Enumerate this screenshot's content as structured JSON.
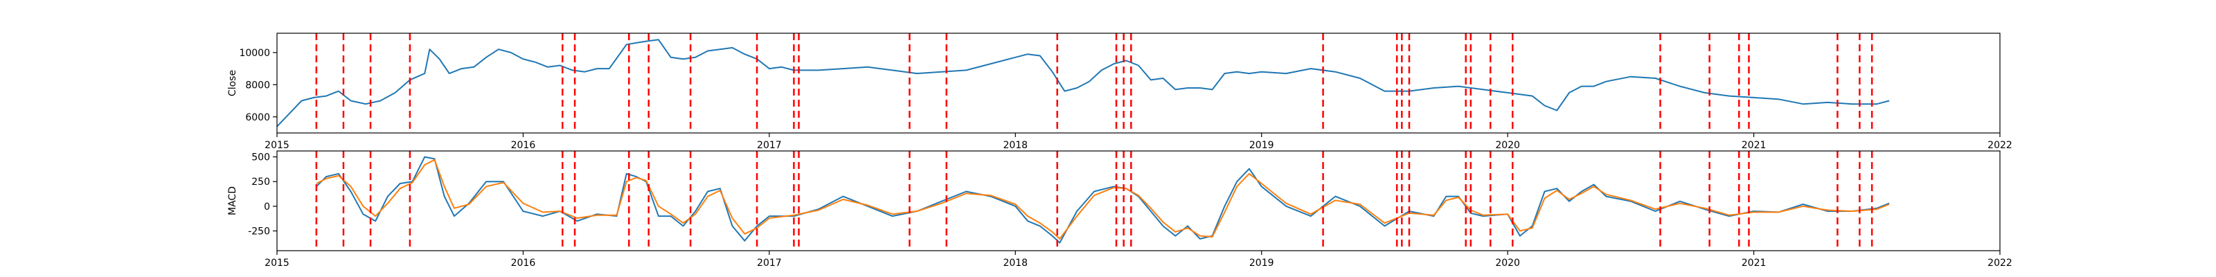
{
  "chart_data": [
    {
      "type": "line",
      "title": "",
      "xlabel": "",
      "ylabel": "Close",
      "xlim": [
        2015,
        2022
      ],
      "ylim": [
        5000,
        11200
      ],
      "x_ticks": [
        2015,
        2016,
        2017,
        2018,
        2019,
        2020,
        2021,
        2022
      ],
      "y_ticks": [
        6000,
        8000,
        10000
      ],
      "grid": false,
      "series": [
        {
          "color": "#1f77b4",
          "x": [
            2015.0,
            2015.05,
            2015.1,
            2015.15,
            2015.2,
            2015.25,
            2015.3,
            2015.36,
            2015.42,
            2015.48,
            2015.54,
            2015.6,
            2015.62,
            2015.66,
            2015.7,
            2015.75,
            2015.8,
            2015.85,
            2015.9,
            2015.95,
            2016.0,
            2016.05,
            2016.1,
            2016.15,
            2016.2,
            2016.25,
            2016.3,
            2016.35,
            2016.42,
            2016.46,
            2016.5,
            2016.55,
            2016.6,
            2016.65,
            2016.7,
            2016.75,
            2016.8,
            2016.85,
            2016.9,
            2016.95,
            2017.0,
            2017.05,
            2017.1,
            2017.2,
            2017.3,
            2017.4,
            2017.5,
            2017.6,
            2017.7,
            2017.8,
            2017.9,
            2018.0,
            2018.05,
            2018.1,
            2018.15,
            2018.2,
            2018.25,
            2018.3,
            2018.35,
            2018.4,
            2018.45,
            2018.5,
            2018.55,
            2018.6,
            2018.65,
            2018.7,
            2018.75,
            2018.8,
            2018.85,
            2018.9,
            2018.95,
            2019.0,
            2019.1,
            2019.2,
            2019.3,
            2019.4,
            2019.5,
            2019.6,
            2019.7,
            2019.8,
            2019.9,
            2020.0,
            2020.05,
            2020.1,
            2020.15,
            2020.2,
            2020.25,
            2020.3,
            2020.35,
            2020.4,
            2020.5,
            2020.6,
            2020.7,
            2020.8,
            2020.9,
            2021.0,
            2021.1,
            2021.2,
            2021.3,
            2021.4,
            2021.5,
            2021.55
          ],
          "y": [
            5400,
            6200,
            7000,
            7200,
            7300,
            7600,
            7000,
            6800,
            7000,
            7500,
            8300,
            8700,
            10200,
            9600,
            8700,
            9000,
            9100,
            9700,
            10200,
            10000,
            9600,
            9400,
            9100,
            9200,
            8900,
            8800,
            9000,
            9000,
            10500,
            10600,
            10700,
            10800,
            9700,
            9600,
            9700,
            10100,
            10200,
            10300,
            9900,
            9600,
            9000,
            9100,
            8900,
            8900,
            9000,
            9100,
            8900,
            8700,
            8800,
            8900,
            9300,
            9700,
            9900,
            9800,
            8800,
            7600,
            7800,
            8200,
            8900,
            9300,
            9500,
            9200,
            8300,
            8400,
            7700,
            7800,
            7800,
            7700,
            8700,
            8800,
            8700,
            8800,
            8700,
            9000,
            8800,
            8400,
            7600,
            7600,
            7800,
            7900,
            7700,
            7500,
            7400,
            7300,
            6700,
            6400,
            7500,
            7900,
            7900,
            8200,
            8500,
            8400,
            7900,
            7500,
            7300,
            7200,
            7100,
            6800,
            6900,
            6800,
            6800,
            7000
          ]
        }
      ],
      "vlines_color": "#ff0000",
      "vlines_x": [
        2015.16,
        2015.27,
        2015.38,
        2015.54,
        2016.16,
        2016.21,
        2016.43,
        2016.51,
        2016.68,
        2016.95,
        2017.1,
        2017.12,
        2017.57,
        2017.72,
        2018.17,
        2018.41,
        2018.44,
        2018.47,
        2019.25,
        2019.55,
        2019.57,
        2019.6,
        2019.83,
        2019.85,
        2019.93,
        2020.02,
        2020.62,
        2020.82,
        2020.94,
        2020.98,
        2021.34,
        2021.43,
        2021.48
      ]
    },
    {
      "type": "line",
      "title": "",
      "xlabel": "",
      "ylabel": "MACD",
      "xlim": [
        2015,
        2022
      ],
      "ylim": [
        -450,
        560
      ],
      "x_ticks": [
        2015,
        2016,
        2017,
        2018,
        2019,
        2020,
        2021,
        2022
      ],
      "y_ticks": [
        -250,
        0,
        250,
        500
      ],
      "grid": false,
      "series": [
        {
          "color": "#1f77b4",
          "x": [
            2015.16,
            2015.2,
            2015.25,
            2015.3,
            2015.35,
            2015.4,
            2015.45,
            2015.5,
            2015.55,
            2015.6,
            2015.64,
            2015.68,
            2015.72,
            2015.78,
            2015.85,
            2015.92,
            2016.0,
            2016.08,
            2016.15,
            2016.22,
            2016.3,
            2016.38,
            2016.42,
            2016.46,
            2016.5,
            2016.55,
            2016.6,
            2016.65,
            2016.7,
            2016.75,
            2016.8,
            2016.85,
            2016.9,
            2016.95,
            2017.0,
            2017.1,
            2017.2,
            2017.3,
            2017.4,
            2017.5,
            2017.6,
            2017.7,
            2017.8,
            2017.9,
            2018.0,
            2018.05,
            2018.1,
            2018.15,
            2018.18,
            2018.25,
            2018.32,
            2018.4,
            2018.45,
            2018.5,
            2018.55,
            2018.6,
            2018.65,
            2018.7,
            2018.75,
            2018.8,
            2018.85,
            2018.9,
            2018.95,
            2019.0,
            2019.1,
            2019.2,
            2019.3,
            2019.4,
            2019.5,
            2019.6,
            2019.7,
            2019.75,
            2019.8,
            2019.85,
            2019.9,
            2020.0,
            2020.05,
            2020.1,
            2020.15,
            2020.2,
            2020.25,
            2020.3,
            2020.35,
            2020.4,
            2020.5,
            2020.6,
            2020.7,
            2020.8,
            2020.9,
            2021.0,
            2021.1,
            2021.2,
            2021.3,
            2021.4,
            2021.5,
            2021.55
          ],
          "y": [
            200,
            300,
            330,
            150,
            -80,
            -150,
            100,
            230,
            250,
            500,
            480,
            100,
            -100,
            30,
            250,
            250,
            -50,
            -100,
            -50,
            -150,
            -80,
            -100,
            330,
            300,
            250,
            -100,
            -100,
            -200,
            -50,
            150,
            180,
            -200,
            -350,
            -200,
            -100,
            -100,
            -30,
            100,
            0,
            -100,
            -50,
            50,
            150,
            100,
            0,
            -150,
            -200,
            -300,
            -370,
            -50,
            150,
            200,
            180,
            100,
            -50,
            -200,
            -300,
            -200,
            -330,
            -300,
            0,
            250,
            380,
            200,
            0,
            -100,
            100,
            0,
            -200,
            -50,
            -100,
            100,
            100,
            -70,
            -100,
            -80,
            -300,
            -200,
            150,
            180,
            50,
            150,
            220,
            100,
            50,
            -50,
            50,
            -30,
            -100,
            -50,
            -60,
            20,
            -50,
            -50,
            -20,
            30
          ]
        },
        {
          "color": "#ff7f0e",
          "x": [
            2015.16,
            2015.2,
            2015.25,
            2015.3,
            2015.35,
            2015.4,
            2015.45,
            2015.5,
            2015.55,
            2015.6,
            2015.64,
            2015.68,
            2015.72,
            2015.78,
            2015.85,
            2015.92,
            2016.0,
            2016.08,
            2016.15,
            2016.22,
            2016.3,
            2016.38,
            2016.42,
            2016.46,
            2016.5,
            2016.55,
            2016.6,
            2016.65,
            2016.7,
            2016.75,
            2016.8,
            2016.85,
            2016.9,
            2016.95,
            2017.0,
            2017.1,
            2017.2,
            2017.3,
            2017.4,
            2017.5,
            2017.6,
            2017.7,
            2017.8,
            2017.9,
            2018.0,
            2018.05,
            2018.1,
            2018.15,
            2018.18,
            2018.25,
            2018.32,
            2018.4,
            2018.45,
            2018.5,
            2018.55,
            2018.6,
            2018.65,
            2018.7,
            2018.75,
            2018.8,
            2018.85,
            2018.9,
            2018.95,
            2019.0,
            2019.1,
            2019.2,
            2019.3,
            2019.4,
            2019.5,
            2019.6,
            2019.7,
            2019.75,
            2019.8,
            2019.85,
            2019.9,
            2020.0,
            2020.05,
            2020.1,
            2020.15,
            2020.2,
            2020.25,
            2020.3,
            2020.35,
            2020.4,
            2020.5,
            2020.6,
            2020.7,
            2020.8,
            2020.9,
            2021.0,
            2021.1,
            2021.2,
            2021.3,
            2021.4,
            2021.5,
            2021.55
          ],
          "y": [
            230,
            280,
            310,
            200,
            0,
            -100,
            30,
            180,
            240,
            420,
            470,
            200,
            -20,
            20,
            200,
            240,
            30,
            -60,
            -50,
            -120,
            -90,
            -90,
            250,
            290,
            260,
            0,
            -80,
            -170,
            -80,
            100,
            160,
            -120,
            -280,
            -220,
            -120,
            -90,
            -40,
            70,
            10,
            -80,
            -50,
            30,
            130,
            110,
            20,
            -100,
            -170,
            -260,
            -330,
            -100,
            110,
            190,
            180,
            110,
            -20,
            -160,
            -260,
            -220,
            -300,
            -310,
            -60,
            200,
            330,
            230,
            30,
            -80,
            60,
            20,
            -170,
            -70,
            -90,
            60,
            90,
            -40,
            -90,
            -80,
            -250,
            -220,
            80,
            160,
            70,
            130,
            200,
            120,
            60,
            -30,
            30,
            -20,
            -90,
            -60,
            -60,
            0,
            -40,
            -50,
            -30,
            20
          ]
        }
      ],
      "vlines_color": "#ff0000",
      "vlines_x": [
        2015.16,
        2015.27,
        2015.38,
        2015.54,
        2016.16,
        2016.21,
        2016.43,
        2016.51,
        2016.68,
        2016.95,
        2017.1,
        2017.12,
        2017.57,
        2017.72,
        2018.17,
        2018.41,
        2018.44,
        2018.47,
        2019.25,
        2019.55,
        2019.57,
        2019.6,
        2019.83,
        2019.85,
        2019.93,
        2020.02,
        2020.62,
        2020.82,
        2020.94,
        2020.98,
        2021.34,
        2021.43,
        2021.48
      ]
    }
  ]
}
